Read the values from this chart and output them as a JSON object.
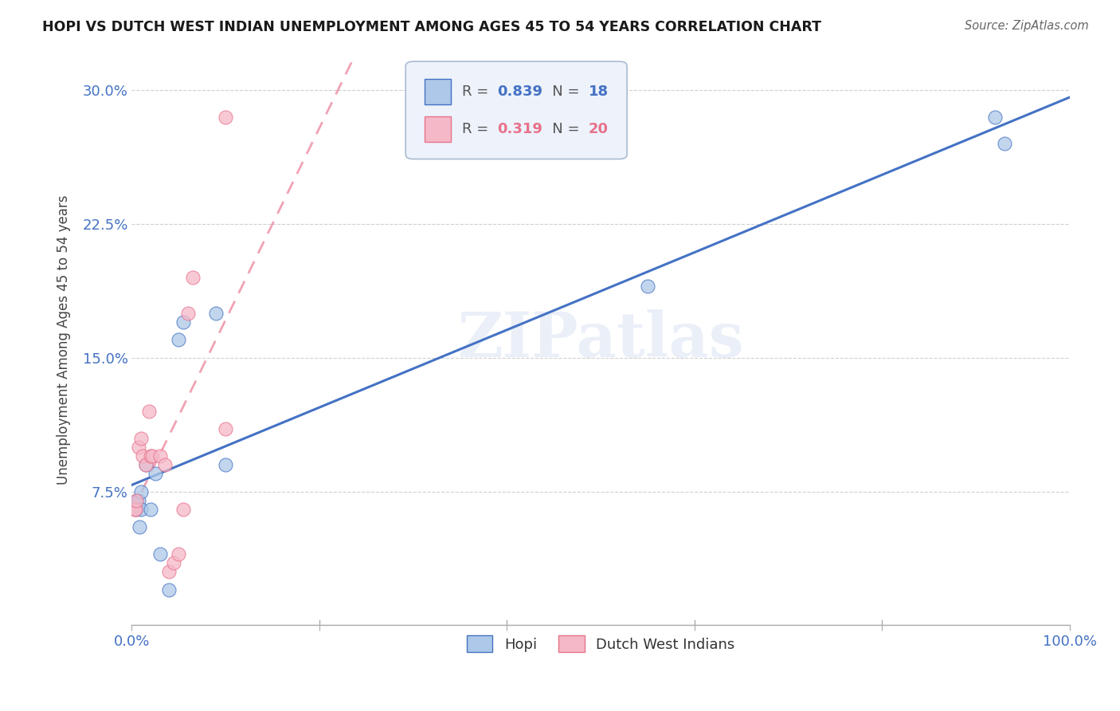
{
  "title": "HOPI VS DUTCH WEST INDIAN UNEMPLOYMENT AMONG AGES 45 TO 54 YEARS CORRELATION CHART",
  "source": "Source: ZipAtlas.com",
  "ylabel": "Unemployment Among Ages 45 to 54 years",
  "xlim": [
    0.0,
    1.0
  ],
  "ylim": [
    0.0,
    0.32
  ],
  "xticks": [
    0.0,
    0.2,
    0.4,
    0.6,
    0.8,
    1.0
  ],
  "xticklabels": [
    "0.0%",
    "",
    "",
    "",
    "",
    "100.0%"
  ],
  "yticks": [
    0.0,
    0.075,
    0.15,
    0.225,
    0.3
  ],
  "yticklabels": [
    "",
    "7.5%",
    "15.0%",
    "22.5%",
    "30.0%"
  ],
  "hopi_R": 0.839,
  "hopi_N": 18,
  "dutch_R": 0.319,
  "dutch_N": 20,
  "hopi_color": "#adc8e8",
  "dutch_color": "#f5b8c8",
  "hopi_line_color": "#4472c4",
  "dutch_line_color": "#e8728a",
  "hopi_x": [
    0.005,
    0.005,
    0.007,
    0.008,
    0.01,
    0.01,
    0.015,
    0.02,
    0.025,
    0.03,
    0.04,
    0.05,
    0.055,
    0.09,
    0.1,
    0.55,
    0.92,
    0.93
  ],
  "hopi_y": [
    0.065,
    0.07,
    0.07,
    0.055,
    0.065,
    0.075,
    0.09,
    0.065,
    0.085,
    0.04,
    0.02,
    0.16,
    0.17,
    0.175,
    0.09,
    0.19,
    0.285,
    0.27
  ],
  "dutch_x": [
    0.003,
    0.004,
    0.005,
    0.007,
    0.01,
    0.012,
    0.015,
    0.018,
    0.02,
    0.022,
    0.03,
    0.035,
    0.04,
    0.045,
    0.05,
    0.055,
    0.06,
    0.065,
    0.1,
    0.1
  ],
  "dutch_y": [
    0.065,
    0.065,
    0.07,
    0.1,
    0.105,
    0.095,
    0.09,
    0.12,
    0.095,
    0.095,
    0.095,
    0.09,
    0.03,
    0.035,
    0.04,
    0.065,
    0.175,
    0.195,
    0.11,
    0.285
  ],
  "watermark": "ZIPatlas",
  "background_color": "#ffffff",
  "grid_color": "#d0d0d0"
}
